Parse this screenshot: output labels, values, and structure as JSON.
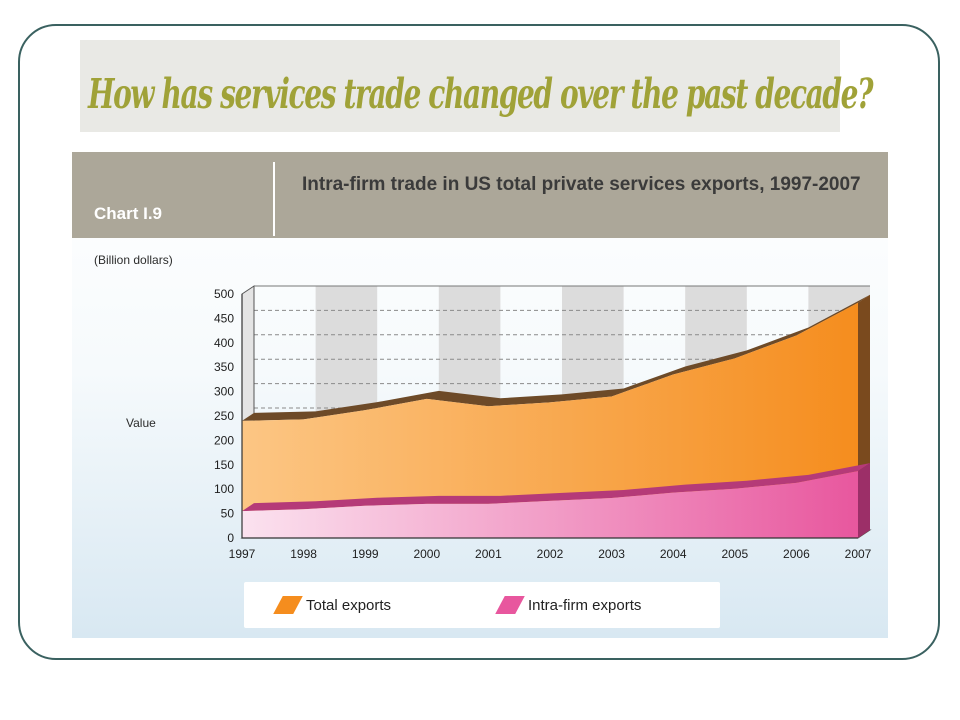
{
  "slide": {
    "title": "How has services trade changed over the past decade?"
  },
  "chart_header": {
    "number": "Chart I.9",
    "title": "Intra-firm trade in US total private services exports, 1997-2007"
  },
  "colors": {
    "frame": "#3a6160",
    "title_text": "#a0a238",
    "header_bg": "#aca799",
    "total_exports_light": "#fcc684",
    "total_exports_dark": "#f58d1e",
    "total_exports_edge": "#6d4a28",
    "intra_firm_light": "#fbe2ef",
    "intra_firm_dark": "#e8579e"
  },
  "chart_data": {
    "type": "area",
    "stacked": false,
    "three_d": true,
    "unit_label": "(Billion dollars)",
    "ylabel": "Value",
    "xlabel": "",
    "x": [
      "1997",
      "1998",
      "1999",
      "2000",
      "2001",
      "2002",
      "2003",
      "2004",
      "2005",
      "2006",
      "2007"
    ],
    "ylim": [
      0,
      500
    ],
    "yticks": [
      0,
      50,
      100,
      150,
      200,
      250,
      300,
      350,
      400,
      450,
      500
    ],
    "grid": true,
    "legend_position": "bottom",
    "series": [
      {
        "name": "Total exports",
        "values": [
          240,
          243,
          262,
          285,
          270,
          278,
          290,
          335,
          368,
          415,
          482
        ]
      },
      {
        "name": "Intra-firm exports",
        "values": [
          55,
          59,
          66,
          70,
          70,
          76,
          82,
          93,
          101,
          113,
          137
        ]
      }
    ]
  }
}
